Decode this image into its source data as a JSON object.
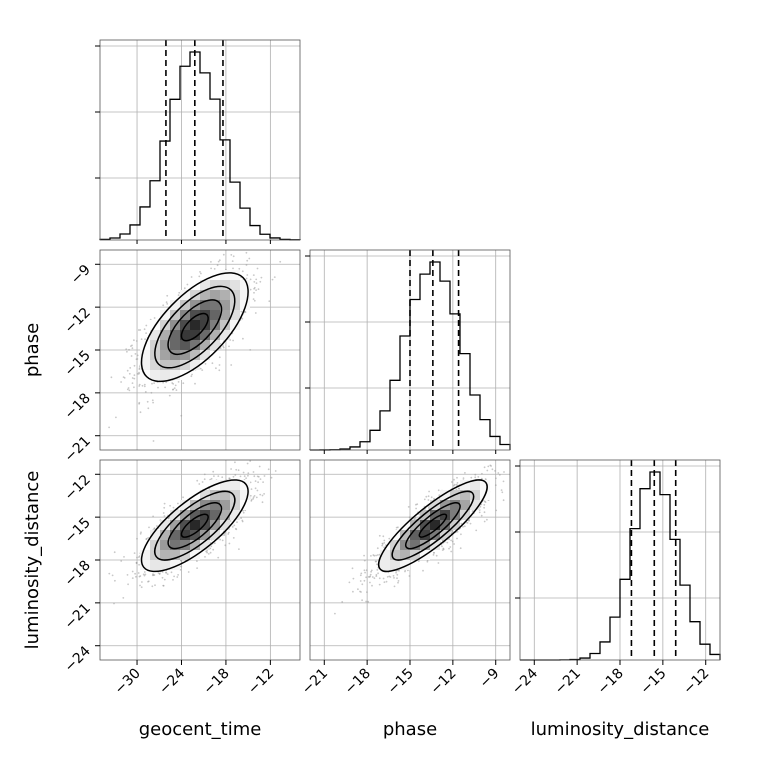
{
  "chart_data": {
    "type": "corner",
    "parameters": [
      {
        "name": "geocent_time",
        "ticks": [
          -30,
          -24,
          -18,
          -12
        ],
        "range": [
          -35,
          -8
        ],
        "mean": -22.2,
        "sd": 3.6,
        "quantiles": [
          -26.1,
          -22.2,
          -18.4
        ]
      },
      {
        "name": "phase",
        "ticks": [
          -21,
          -18,
          -15,
          -12,
          -9
        ],
        "range": [
          -22,
          -8
        ],
        "mean": -13.4,
        "sd": 1.9,
        "quantiles": [
          -15.0,
          -13.4,
          -11.6
        ]
      },
      {
        "name": "luminosity_distance",
        "ticks": [
          -24,
          -21,
          -18,
          -15,
          -12
        ],
        "range": [
          -25,
          -11
        ],
        "mean": -15.6,
        "sd": 1.6,
        "quantiles": [
          -17.2,
          -15.6,
          -14.1
        ]
      }
    ],
    "correlations": [
      [
        1,
        0.65,
        0.75
      ],
      [
        0.65,
        1,
        0.85
      ],
      [
        0.75,
        0.85,
        1
      ]
    ],
    "histogram_bins": 20,
    "grid": true,
    "contour_levels": [
      0.5,
      1.0,
      1.5,
      2.0
    ]
  }
}
